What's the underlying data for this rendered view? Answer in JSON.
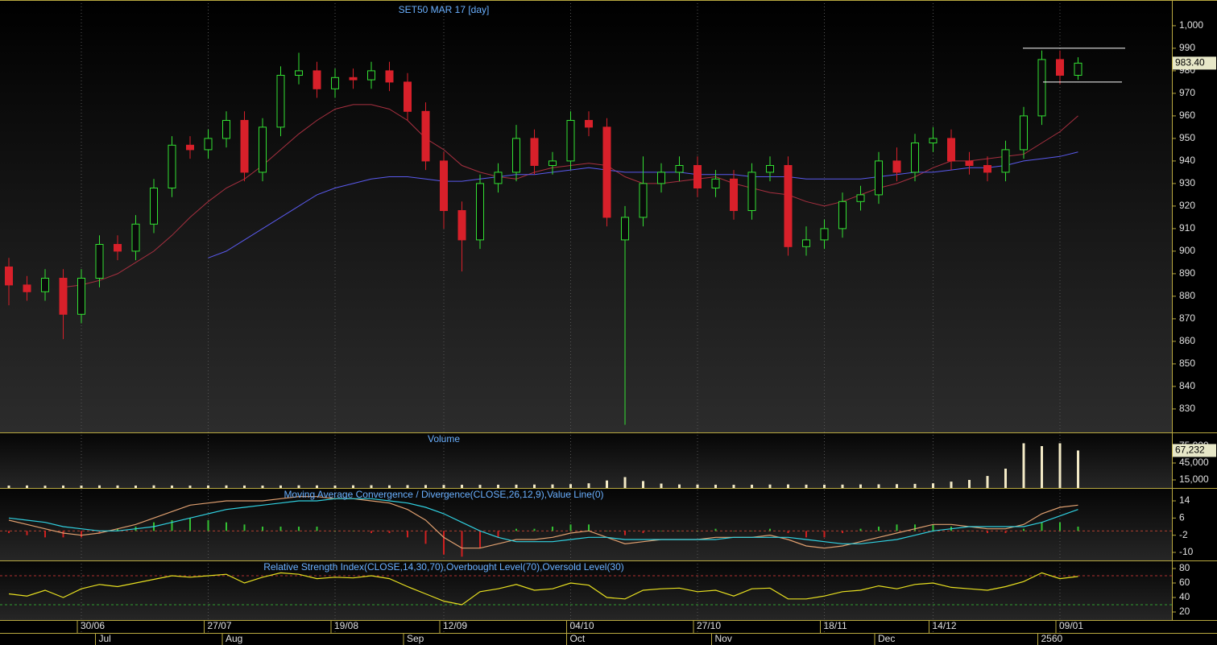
{
  "chart_data": [
    {
      "type": "candlestick",
      "title": "SET50 MAR 17   [day]",
      "categories": [
        null,
        null,
        null,
        null,
        "30/06",
        null,
        null,
        null,
        null,
        null,
        null,
        "27/07",
        null,
        null,
        null,
        null,
        null,
        null,
        "19/08",
        null,
        null,
        null,
        null,
        null,
        "12/09",
        null,
        null,
        null,
        null,
        null,
        null,
        "04/10",
        null,
        null,
        null,
        null,
        null,
        null,
        "27/10",
        null,
        null,
        null,
        null,
        null,
        null,
        "18/11",
        null,
        null,
        null,
        null,
        null,
        "14/12",
        null,
        null,
        null,
        null,
        null,
        null,
        "09/01",
        null
      ],
      "months": [
        null,
        null,
        null,
        null,
        null,
        "Jul",
        null,
        null,
        null,
        null,
        null,
        null,
        "Aug",
        null,
        null,
        null,
        null,
        null,
        null,
        null,
        null,
        null,
        "Sep",
        null,
        null,
        null,
        null,
        null,
        null,
        null,
        null,
        "Oct",
        null,
        null,
        null,
        null,
        null,
        null,
        null,
        "Nov",
        null,
        null,
        null,
        null,
        null,
        null,
        null,
        null,
        "Dec",
        null,
        null,
        null,
        null,
        null,
        null,
        null,
        null,
        "2560",
        null,
        null
      ],
      "open": [
        893,
        885,
        882,
        888,
        872,
        888,
        903,
        900,
        912,
        928,
        947,
        945,
        950,
        958,
        935,
        955,
        978,
        980,
        972,
        977,
        976,
        980,
        975,
        962,
        940,
        918,
        905,
        930,
        935,
        950,
        938,
        940,
        958,
        955,
        905,
        915,
        930,
        935,
        938,
        928,
        932,
        918,
        935,
        938,
        902,
        905,
        910,
        922,
        925,
        940,
        935,
        948,
        950,
        940,
        938,
        935,
        945,
        960,
        985,
        978
      ],
      "high": [
        897,
        889,
        892,
        892,
        892,
        907,
        907,
        916,
        932,
        951,
        951,
        954,
        962,
        962,
        959,
        982,
        988,
        984,
        981,
        981,
        984,
        984,
        979,
        966,
        944,
        922,
        934,
        939,
        956,
        954,
        944,
        962,
        962,
        959,
        920,
        942,
        939,
        942,
        942,
        936,
        936,
        939,
        942,
        942,
        911,
        914,
        926,
        929,
        944,
        946,
        952,
        955,
        954,
        944,
        942,
        949,
        964,
        989,
        989,
        986
      ],
      "low": [
        876,
        878,
        878,
        861,
        868,
        884,
        896,
        896,
        908,
        924,
        941,
        941,
        946,
        931,
        931,
        951,
        974,
        968,
        968,
        972,
        972,
        971,
        958,
        936,
        910,
        891,
        901,
        926,
        931,
        934,
        934,
        936,
        951,
        911,
        823,
        911,
        926,
        931,
        924,
        924,
        914,
        914,
        931,
        898,
        898,
        901,
        906,
        918,
        921,
        931,
        931,
        944,
        936,
        934,
        931,
        931,
        941,
        956,
        974,
        976
      ],
      "close": [
        885,
        882,
        888,
        872,
        888,
        903,
        900,
        912,
        928,
        947,
        945,
        950,
        958,
        935,
        955,
        978,
        980,
        972,
        977,
        976,
        980,
        975,
        962,
        940,
        918,
        905,
        930,
        935,
        950,
        938,
        940,
        958,
        955,
        915,
        915,
        930,
        935,
        938,
        928,
        932,
        918,
        935,
        938,
        902,
        905,
        910,
        922,
        925,
        940,
        935,
        948,
        950,
        940,
        938,
        935,
        945,
        960,
        985,
        978,
        983.4
      ],
      "up_color": "#33e033",
      "down_color": "#d8202a",
      "ma_lines": [
        {
          "color": "#a83040",
          "values": [
            null,
            null,
            null,
            884,
            885,
            887,
            890,
            895,
            900,
            907,
            915,
            922,
            928,
            932,
            938,
            945,
            952,
            958,
            963,
            965,
            965,
            963,
            958,
            950,
            945,
            938,
            935,
            933,
            932,
            935,
            937,
            938,
            939,
            938,
            933,
            930,
            930,
            931,
            932,
            933,
            930,
            928,
            926,
            925,
            922,
            920,
            922,
            925,
            928,
            930,
            933,
            937,
            940,
            940,
            941,
            942,
            943,
            948,
            953,
            960
          ]
        },
        {
          "color": "#5a5aee",
          "values": [
            null,
            null,
            null,
            null,
            null,
            null,
            null,
            null,
            null,
            null,
            null,
            897,
            900,
            905,
            910,
            915,
            920,
            925,
            928,
            930,
            932,
            933,
            933,
            932,
            931,
            931,
            932,
            933,
            934,
            934,
            935,
            936,
            937,
            936,
            935,
            935,
            935,
            935,
            934,
            934,
            934,
            933,
            933,
            933,
            932,
            932,
            932,
            932,
            933,
            934,
            935,
            935,
            936,
            937,
            937,
            938,
            940,
            941,
            942,
            944
          ]
        }
      ],
      "trend_lines": [
        990,
        975
      ],
      "last_price": {
        "value": 983.4,
        "label": "983.40"
      },
      "ylim": [
        819.6,
        1011.4
      ],
      "yticks": [
        830,
        840,
        850,
        860,
        870,
        880,
        890,
        900,
        910,
        920,
        930,
        940,
        950,
        960,
        970,
        980,
        990,
        {
          "value": 1000,
          "label": "1,000"
        }
      ]
    },
    {
      "type": "bar",
      "title": "Volume",
      "color": "#f3eac6",
      "values": [
        5000,
        5200,
        4800,
        5100,
        5000,
        5300,
        5200,
        5000,
        5400,
        5100,
        5000,
        5200,
        5300,
        5100,
        5000,
        5200,
        5400,
        5300,
        5100,
        5500,
        5600,
        5400,
        5800,
        6000,
        6200,
        6400,
        6300,
        6500,
        6600,
        6800,
        7000,
        7500,
        9000,
        14000,
        20000,
        13000,
        8500,
        7000,
        6800,
        6500,
        6400,
        6500,
        6800,
        7000,
        6600,
        6500,
        6700,
        7000,
        7200,
        7500,
        8000,
        9000,
        12000,
        15000,
        22000,
        35000,
        80000,
        75000,
        80000,
        67232
      ],
      "last_value": {
        "value": 67232,
        "label": "67,232"
      },
      "ylim": [
        714,
        99286
      ],
      "yticks": [
        {
          "value": 75000,
          "label": "75,000"
        },
        {
          "value": 45000,
          "label": "45,000"
        },
        {
          "value": 15000,
          "label": "15,000"
        }
      ]
    },
    {
      "type": "macd",
      "title": "Moving Average Convergence / Divergence(CLOSE,26,12,9),Value Line(0)",
      "series": [
        {
          "color": "#e0a070",
          "values": [
            5,
            3,
            1,
            -1,
            -2,
            -1,
            1,
            3,
            6,
            9,
            12,
            13,
            14,
            14,
            14,
            15,
            16,
            16,
            15,
            15,
            14,
            13,
            10,
            5,
            -3,
            -8,
            -8,
            -6,
            -4,
            -4,
            -3,
            -1,
            0,
            -3,
            -6,
            -5,
            -4,
            -4,
            -4,
            -3,
            -3,
            -3,
            -2,
            -4,
            -7,
            -8,
            -7,
            -5,
            -3,
            -1,
            1,
            3,
            3,
            2,
            1,
            1,
            3,
            8,
            11,
            12
          ]
        },
        {
          "color": "#30d0e0",
          "values": [
            6,
            5,
            4,
            2,
            1,
            0,
            0,
            1,
            2,
            4,
            6,
            8,
            10,
            11,
            12,
            13,
            14,
            14,
            15,
            15,
            15,
            14,
            13,
            11,
            8,
            4,
            0,
            -3,
            -5,
            -5,
            -5,
            -4,
            -3,
            -3,
            -4,
            -4,
            -4,
            -4,
            -4,
            -4,
            -3,
            -3,
            -3,
            -3,
            -4,
            -5,
            -6,
            -6,
            -5,
            -4,
            -2,
            0,
            1,
            2,
            2,
            2,
            2,
            4,
            7,
            10
          ]
        }
      ],
      "histogram": [
        -1,
        -2,
        -3,
        -3,
        -3,
        -1,
        1,
        2,
        4,
        5,
        6,
        5,
        4,
        3,
        2,
        2,
        2,
        2,
        0,
        0,
        -1,
        -1,
        -3,
        -6,
        -11,
        -12,
        -8,
        -3,
        1,
        1,
        2,
        3,
        3,
        0,
        -2,
        -1,
        0,
        0,
        0,
        1,
        0,
        0,
        1,
        -1,
        -3,
        -3,
        -1,
        1,
        2,
        3,
        3,
        3,
        2,
        0,
        -1,
        -1,
        1,
        4,
        4,
        2
      ],
      "up_color": "#33c033",
      "down_color": "#d02020",
      "zero_line": 0,
      "ylim": [
        -13.75,
        20
      ],
      "yticks": [
        14,
        6,
        -2,
        -10
      ]
    },
    {
      "type": "rsi",
      "title": "Relative Strength Index(CLOSE,14,30,70),Overbought Level(70),Oversold Level(30)",
      "color": "#e8e020",
      "values": [
        45,
        42,
        50,
        40,
        52,
        58,
        55,
        60,
        65,
        70,
        68,
        70,
        72,
        60,
        68,
        74,
        72,
        66,
        68,
        67,
        70,
        66,
        55,
        45,
        35,
        30,
        48,
        52,
        58,
        50,
        52,
        60,
        57,
        40,
        38,
        50,
        52,
        53,
        48,
        50,
        42,
        52,
        53,
        38,
        38,
        42,
        48,
        50,
        56,
        52,
        58,
        60,
        54,
        52,
        50,
        55,
        62,
        74,
        66,
        69
      ],
      "levels": [
        70,
        30
      ],
      "ylim": [
        8.9,
        91.1
      ],
      "yticks": [
        80,
        60,
        40,
        20
      ]
    }
  ]
}
